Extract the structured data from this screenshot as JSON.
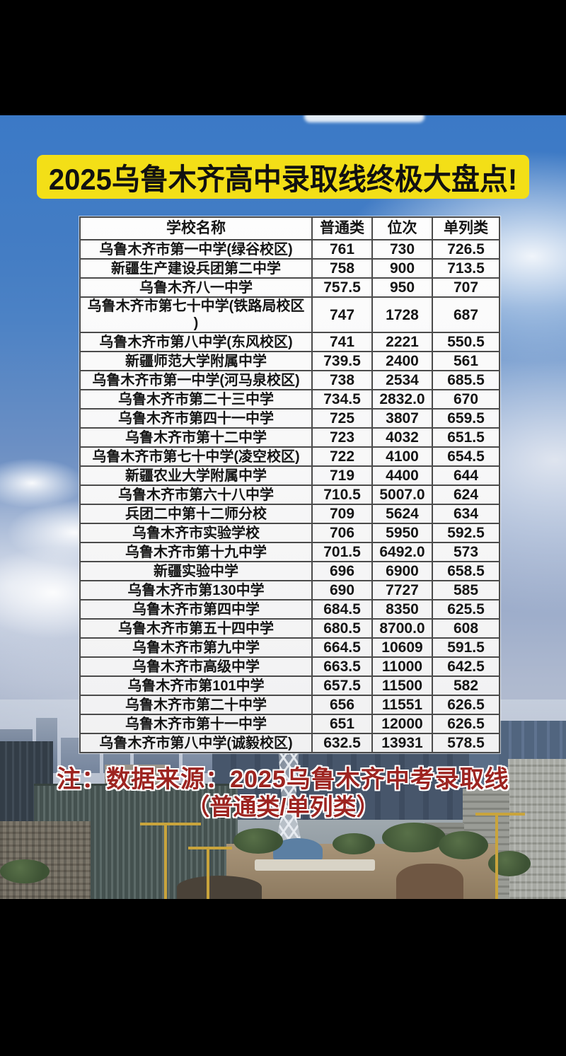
{
  "banner": {
    "title": "2025乌鲁木齐高中录取线终极大盘点!"
  },
  "table": {
    "headers": [
      "学校名称",
      "普通类",
      "位次",
      "单列类"
    ],
    "rows": [
      {
        "school": "乌鲁木齐市第一中学(绿谷校区)",
        "regular": "761",
        "rank": "730",
        "separate": "726.5"
      },
      {
        "school": "新疆生产建设兵团第二中学",
        "regular": "758",
        "rank": "900",
        "separate": "713.5"
      },
      {
        "school": "乌鲁木齐八一中学",
        "regular": "757.5",
        "rank": "950",
        "separate": "707"
      },
      {
        "school": "乌鲁木齐市第七十中学(铁路局校区\n)",
        "regular": "747",
        "rank": "1728",
        "separate": "687"
      },
      {
        "school": "乌鲁木齐市第八中学(东风校区)",
        "regular": "741",
        "rank": "2221",
        "separate": "550.5"
      },
      {
        "school": "新疆师范大学附属中学",
        "regular": "739.5",
        "rank": "2400",
        "separate": "561"
      },
      {
        "school": "乌鲁木齐市第一中学(河马泉校区)",
        "regular": "738",
        "rank": "2534",
        "separate": "685.5"
      },
      {
        "school": "乌鲁木齐市第二十三中学",
        "regular": "734.5",
        "rank": "2832.0",
        "separate": "670"
      },
      {
        "school": "乌鲁木齐市第四十一中学",
        "regular": "725",
        "rank": "3807",
        "separate": "659.5"
      },
      {
        "school": "乌鲁木齐市第十二中学",
        "regular": "723",
        "rank": "4032",
        "separate": "651.5"
      },
      {
        "school": "乌鲁木齐市第七十中学(凌空校区)",
        "regular": "722",
        "rank": "4100",
        "separate": "654.5"
      },
      {
        "school": "新疆农业大学附属中学",
        "regular": "719",
        "rank": "4400",
        "separate": "644"
      },
      {
        "school": "乌鲁木齐市第六十八中学",
        "regular": "710.5",
        "rank": "5007.0",
        "separate": "624"
      },
      {
        "school": "兵团二中第十二师分校",
        "regular": "709",
        "rank": "5624",
        "separate": "634"
      },
      {
        "school": "乌鲁木齐市实验学校",
        "regular": "706",
        "rank": "5950",
        "separate": "592.5"
      },
      {
        "school": "乌鲁木齐市第十九中学",
        "regular": "701.5",
        "rank": "6492.0",
        "separate": "573"
      },
      {
        "school": "新疆实验中学",
        "regular": "696",
        "rank": "6900",
        "separate": "658.5"
      },
      {
        "school": "乌鲁木齐市第130中学",
        "regular": "690",
        "rank": "7727",
        "separate": "585"
      },
      {
        "school": "乌鲁木齐市第四中学",
        "regular": "684.5",
        "rank": "8350",
        "separate": "625.5"
      },
      {
        "school": "乌鲁木齐市第五十四中学",
        "regular": "680.5",
        "rank": "8700.0",
        "separate": "608"
      },
      {
        "school": "乌鲁木齐市第九中学",
        "regular": "664.5",
        "rank": "10609",
        "separate": "591.5"
      },
      {
        "school": "乌鲁木齐市高级中学",
        "regular": "663.5",
        "rank": "11000",
        "separate": "642.5"
      },
      {
        "school": "乌鲁木齐市第101中学",
        "regular": "657.5",
        "rank": "11500",
        "separate": "582"
      },
      {
        "school": "乌鲁木齐市第二十中学",
        "regular": "656",
        "rank": "11551",
        "separate": "626.5"
      },
      {
        "school": "乌鲁木齐市第十一中学",
        "regular": "651",
        "rank": "12000",
        "separate": "626.5"
      },
      {
        "school": "乌鲁木齐市第八中学(诚毅校区)",
        "regular": "632.5",
        "rank": "13931",
        "separate": "578.5"
      }
    ]
  },
  "note": {
    "line1": "注：数据来源：2025乌鲁木齐中考录取线",
    "line2": "（普通类/单列类）"
  },
  "colors": {
    "banner_bg": "#f3df17",
    "note_red": "#9d2420",
    "table_border": "#4b4b4b",
    "sky_blue": "#3b79c6"
  }
}
